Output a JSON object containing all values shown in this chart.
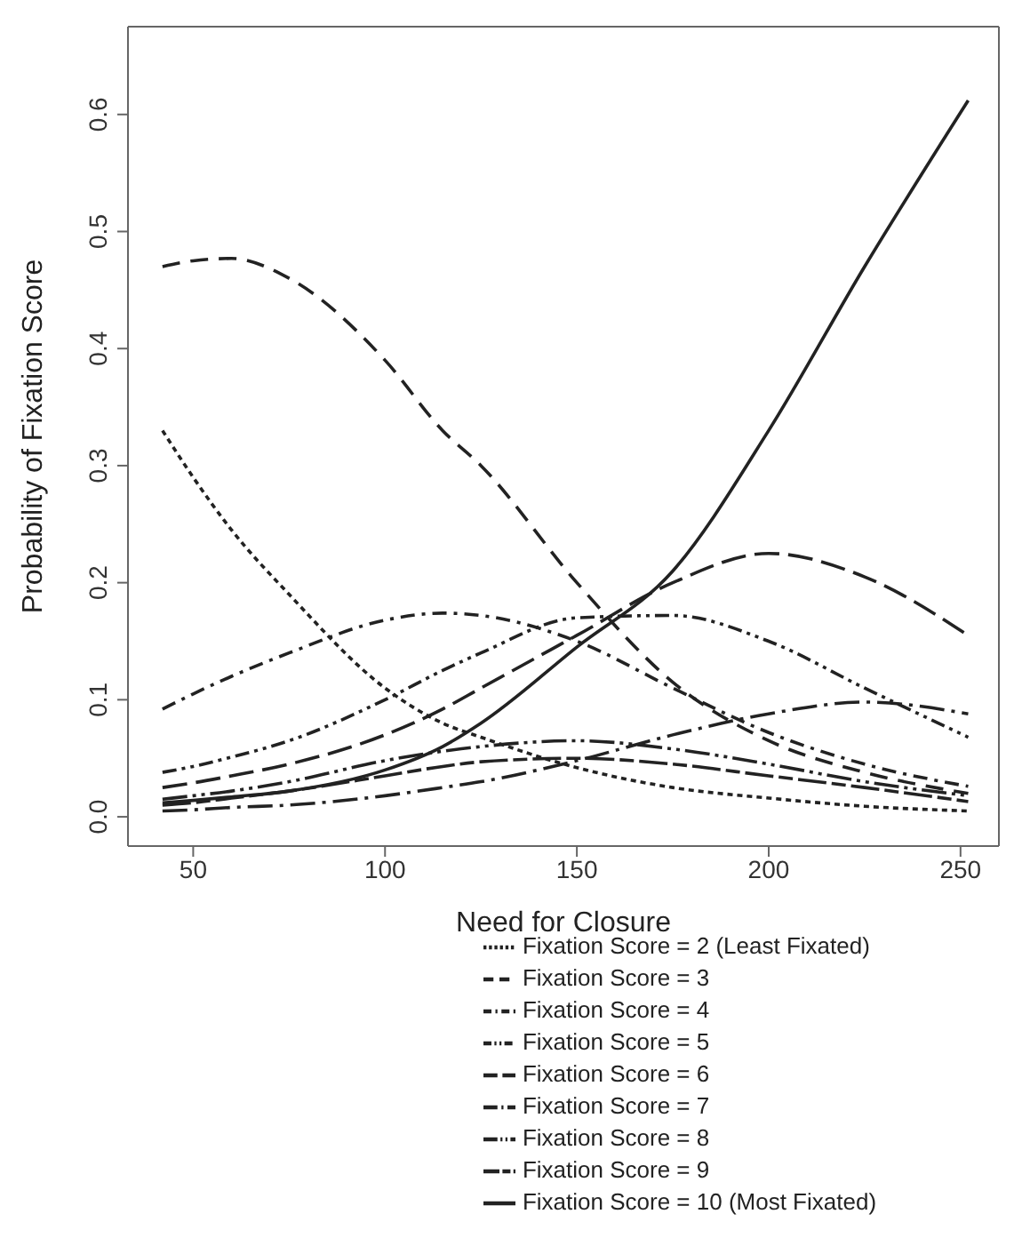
{
  "chart_data": {
    "type": "line",
    "xlabel": "Need for Closure",
    "ylabel": "Probability of Fixation Score",
    "x": [
      42,
      50,
      60,
      75,
      100,
      115,
      125,
      150,
      175,
      200,
      225,
      252
    ],
    "xlim": [
      33,
      260
    ],
    "xticks": [
      50,
      100,
      150,
      200,
      250
    ],
    "ylim": [
      -0.025,
      0.675
    ],
    "yticks": [
      {
        "value": 0,
        "label": "0.0"
      },
      0.1,
      0.2,
      0.3,
      0.4,
      0.5,
      0.6
    ],
    "grid": false,
    "legend": "bottom",
    "marker": "none",
    "series": [
      {
        "name": "Fixation Score = 2 (Least Fixated)",
        "color": "#222222",
        "line_style": "dotted",
        "values": [
          0.33,
          0.29,
          0.245,
          0.19,
          0.11,
          0.08,
          0.068,
          0.042,
          0.025,
          0.016,
          0.009,
          0.005
        ]
      },
      {
        "name": "Fixation Score = 3",
        "color": "#222222",
        "line_style": "dashed",
        "values": [
          0.47,
          0.475,
          0.477,
          0.46,
          0.39,
          0.33,
          0.3,
          0.2,
          0.115,
          0.065,
          0.038,
          0.02
        ]
      },
      {
        "name": "Fixation Score = 4",
        "color": "#222222",
        "line_style": "dashed",
        "values": [
          0.092,
          0.105,
          0.12,
          0.14,
          0.168,
          0.174,
          0.172,
          0.15,
          0.11,
          0.072,
          0.045,
          0.026
        ]
      },
      {
        "name": "Fixation Score = 5",
        "color": "#222222",
        "line_style": "dashed",
        "values": [
          0.038,
          0.043,
          0.051,
          0.065,
          0.1,
          0.125,
          0.14,
          0.17,
          0.172,
          0.15,
          0.11,
          0.068
        ]
      },
      {
        "name": "Fixation Score = 6",
        "color": "#222222",
        "line_style": "dashed",
        "values": [
          0.025,
          0.029,
          0.035,
          0.045,
          0.07,
          0.092,
          0.11,
          0.155,
          0.2,
          0.225,
          0.205,
          0.155
        ]
      },
      {
        "name": "Fixation Score = 7",
        "color": "#222222",
        "line_style": "dashed",
        "values": [
          0.005,
          0.006,
          0.008,
          0.01,
          0.018,
          0.025,
          0.03,
          0.048,
          0.07,
          0.088,
          0.098,
          0.088
        ]
      },
      {
        "name": "Fixation Score = 8",
        "color": "#222222",
        "line_style": "dashed",
        "values": [
          0.015,
          0.018,
          0.022,
          0.03,
          0.048,
          0.056,
          0.06,
          0.065,
          0.058,
          0.045,
          0.03,
          0.018
        ]
      },
      {
        "name": "Fixation Score = 9",
        "color": "#222222",
        "line_style": "dashed",
        "values": [
          0.01,
          0.012,
          0.016,
          0.022,
          0.035,
          0.043,
          0.047,
          0.05,
          0.045,
          0.035,
          0.025,
          0.013
        ]
      },
      {
        "name": "Fixation Score = 10 (Most Fixated)",
        "color": "#222222",
        "line_style": "solid",
        "values": [
          0.012,
          0.014,
          0.017,
          0.022,
          0.04,
          0.06,
          0.08,
          0.145,
          0.21,
          0.33,
          0.47,
          0.612
        ]
      }
    ]
  }
}
